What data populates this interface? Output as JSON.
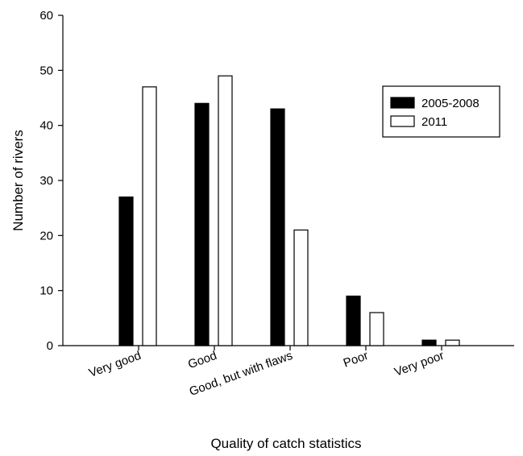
{
  "chart_data": {
    "type": "bar",
    "categories": [
      "Very good",
      "Good",
      "Good, but with flaws",
      "Poor",
      "Very poor"
    ],
    "series": [
      {
        "name": "2005-2008",
        "color": "#000000",
        "values": [
          27,
          44,
          43,
          9,
          1
        ]
      },
      {
        "name": "2011",
        "color": "#ffffff",
        "values": [
          47,
          49,
          21,
          6,
          1
        ]
      }
    ],
    "xlabel": "Quality of catch statistics",
    "ylabel": "Number of rivers",
    "ylim": [
      0,
      60
    ],
    "yticks": [
      0,
      10,
      20,
      30,
      40,
      50,
      60
    ],
    "grid": false,
    "legend_position": "top-right"
  }
}
